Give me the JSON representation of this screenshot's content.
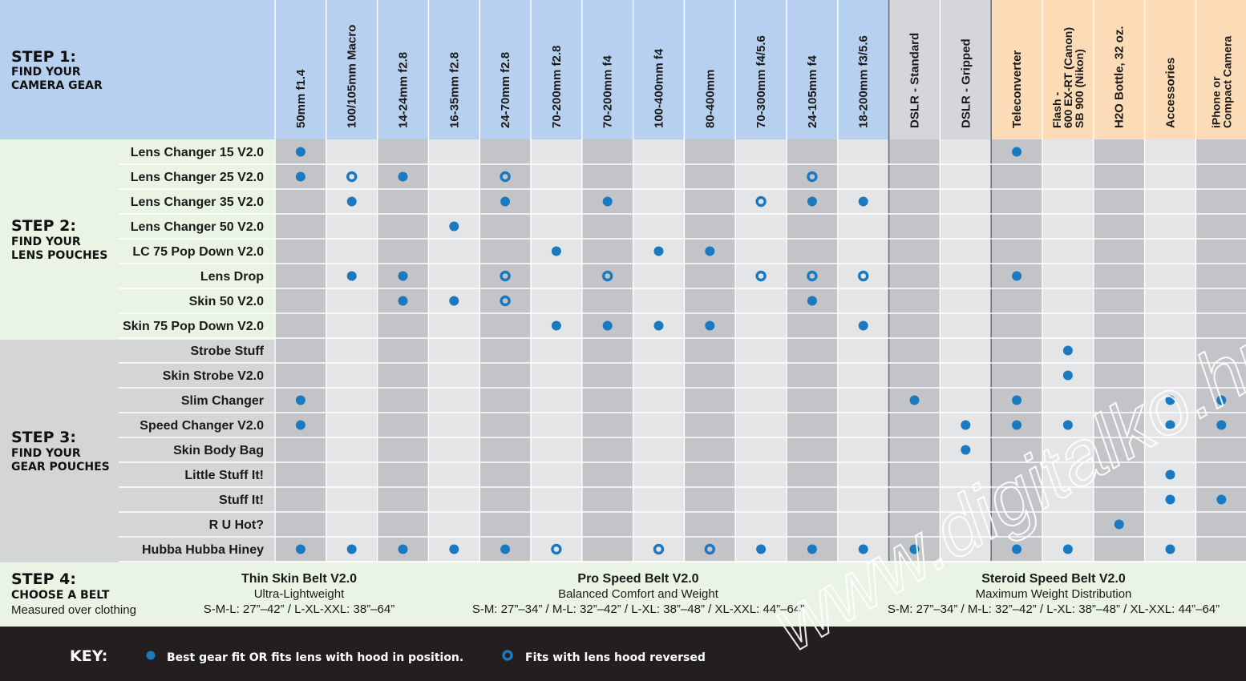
{
  "steps": {
    "step1": {
      "title": "STEP 1:",
      "line1": "FIND YOUR",
      "line2": "CAMERA GEAR"
    },
    "step2": {
      "title": "STEP 2:",
      "line1": "FIND YOUR",
      "line2": "LENS POUCHES"
    },
    "step3": {
      "title": "STEP 3:",
      "line1": "FIND YOUR",
      "line2": "GEAR POUCHES"
    },
    "step4": {
      "title": "STEP 4:",
      "line1": "CHOOSE A BELT",
      "line2": "Measured over clothing"
    }
  },
  "columns": [
    {
      "lines": [
        "50mm f1.4"
      ],
      "group": "lens"
    },
    {
      "lines": [
        "100/105mm Macro"
      ],
      "group": "lens"
    },
    {
      "lines": [
        "14-24mm f2.8"
      ],
      "group": "lens"
    },
    {
      "lines": [
        "16-35mm f2.8"
      ],
      "group": "lens"
    },
    {
      "lines": [
        "24-70mm f2.8"
      ],
      "group": "lens"
    },
    {
      "lines": [
        "70-200mm f2.8"
      ],
      "group": "lens"
    },
    {
      "lines": [
        "70-200mm f4"
      ],
      "group": "lens"
    },
    {
      "lines": [
        "100-400mm f4"
      ],
      "group": "lens"
    },
    {
      "lines": [
        "80-400mm"
      ],
      "group": "lens"
    },
    {
      "lines": [
        "70-300mm f4/5.6"
      ],
      "group": "lens"
    },
    {
      "lines": [
        "24-105mm f4"
      ],
      "group": "lens"
    },
    {
      "lines": [
        "18-200mm f3/5.6"
      ],
      "group": "lens"
    },
    {
      "lines": [
        "DSLR - Standard"
      ],
      "group": "body"
    },
    {
      "lines": [
        "DSLR - Gripped"
      ],
      "group": "body"
    },
    {
      "lines": [
        "Teleconverter"
      ],
      "group": "acc"
    },
    {
      "lines": [
        "Flash -",
        "600 EX-RT (Canon)",
        "SB 900 (Nikon)"
      ],
      "group": "acc"
    },
    {
      "lines": [
        "H2O Bottle, 32 oz."
      ],
      "group": "acc"
    },
    {
      "lines": [
        "Accessories"
      ],
      "group": "acc"
    },
    {
      "lines": [
        "iPhone or",
        "Compact Camera"
      ],
      "group": "acc"
    }
  ],
  "rows": [
    {
      "label": "Lens Changer 15 V2.0",
      "section": "lens",
      "fill": [
        0,
        14
      ],
      "hood": []
    },
    {
      "label": "Lens Changer 25 V2.0",
      "section": "lens",
      "fill": [
        0,
        2
      ],
      "hood": [
        1,
        4,
        10
      ]
    },
    {
      "label": "Lens Changer 35 V2.0",
      "section": "lens",
      "fill": [
        1,
        4,
        6,
        10,
        11
      ],
      "hood": [
        9
      ]
    },
    {
      "label": "Lens Changer 50 V2.0",
      "section": "lens",
      "fill": [
        3
      ],
      "hood": []
    },
    {
      "label": "LC 75 Pop Down V2.0",
      "section": "lens",
      "fill": [
        5,
        7,
        8
      ],
      "hood": []
    },
    {
      "label": "Lens Drop",
      "section": "lens",
      "fill": [
        1,
        2,
        14
      ],
      "hood": [
        4,
        6,
        9,
        10,
        11
      ]
    },
    {
      "label": "Skin 50 V2.0",
      "section": "lens",
      "fill": [
        2,
        3,
        10
      ],
      "hood": [
        4
      ]
    },
    {
      "label": "Skin 75 Pop Down V2.0",
      "section": "lens",
      "fill": [
        5,
        6,
        7,
        8,
        11
      ],
      "hood": []
    },
    {
      "label": "Strobe Stuff",
      "section": "gear",
      "fill": [
        15
      ],
      "hood": []
    },
    {
      "label": "Skin Strobe V2.0",
      "section": "gear",
      "fill": [
        15
      ],
      "hood": []
    },
    {
      "label": "Slim Changer",
      "section": "gear",
      "fill": [
        0,
        12,
        14,
        17,
        18
      ],
      "hood": []
    },
    {
      "label": "Speed Changer V2.0",
      "section": "gear",
      "fill": [
        0,
        13,
        14,
        15,
        17,
        18
      ],
      "hood": []
    },
    {
      "label": "Skin Body Bag",
      "section": "gear",
      "fill": [
        13
      ],
      "hood": []
    },
    {
      "label": "Little Stuff It!",
      "section": "gear",
      "fill": [
        17
      ],
      "hood": []
    },
    {
      "label": "Stuff It!",
      "section": "gear",
      "fill": [
        17,
        18
      ],
      "hood": []
    },
    {
      "label": "R U Hot?",
      "section": "gear",
      "fill": [
        16
      ],
      "hood": []
    },
    {
      "label": "Hubba Hubba Hiney",
      "section": "gear",
      "fill": [
        0,
        1,
        2,
        3,
        4,
        9,
        10,
        11,
        12,
        14,
        15,
        17
      ],
      "hood": [
        5,
        7,
        8
      ]
    }
  ],
  "belts": [
    {
      "name": "Thin Skin Belt V2.0",
      "desc": "Ultra-Lightweight",
      "sizes": "S-M-L: 27”–42” / L-XL-XXL: 38”–64”"
    },
    {
      "name": "Pro Speed Belt V2.0",
      "desc": "Balanced Comfort and Weight",
      "sizes": "S-M: 27”–34” / M-L: 32”–42” / L-XL: 38”–48” / XL-XXL: 44”–64”"
    },
    {
      "name": "Steroid Speed Belt V2.0",
      "desc": "Maximum Weight Distribution",
      "sizes": "S-M: 27”–34” / M-L: 32”–42” / L-XL: 38”–48” / XL-XXL: 44”–64”"
    }
  ],
  "key": {
    "title": "KEY:",
    "fill_text": "Best gear fit OR fits lens with hood in position.",
    "hood_text": "Fits with lens hood reversed"
  },
  "watermark": "www.digitalko.hu",
  "colors": {
    "header_lens": "#b7d0ef",
    "header_body": "#d4d6d9",
    "header_acc": "#fcdcb6",
    "step_green": "#e9f4e4",
    "step_gray": "#d4d5d7",
    "col_dark": "#c2c4c7",
    "col_light": "#e4e5e6",
    "dot": "#1b79c0",
    "key_bg": "#231f20"
  }
}
